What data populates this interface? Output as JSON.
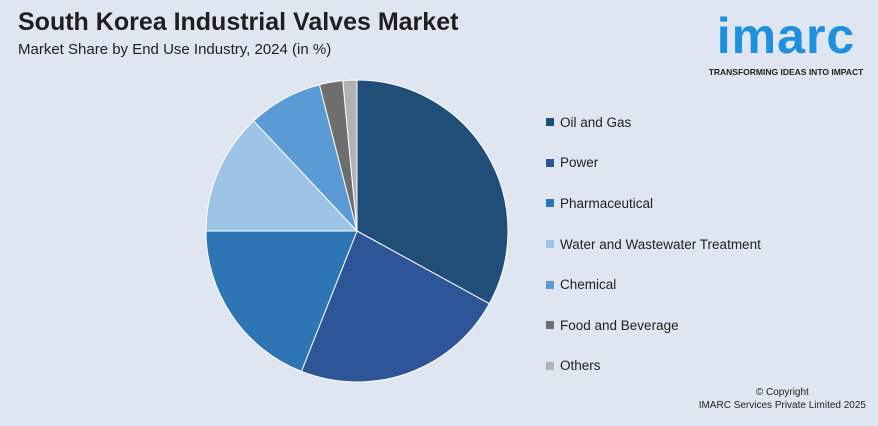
{
  "header": {
    "title": "South Korea Industrial Valves Market",
    "subtitle": "Market Share by End Use Industry, 2024 (in %)"
  },
  "logo": {
    "word": "imarc",
    "tagline": "TRANSFORMING IDEAS INTO IMPACT",
    "color": "#1e90e0"
  },
  "footer": {
    "copyright_line1": "© Copyright",
    "copyright_line2": "IMARC Services Private Limited 2025"
  },
  "chart_data": {
    "type": "pie",
    "title": "South Korea Industrial Valves Market",
    "subtitle": "Market Share by End Use Industry, 2024 (in %)",
    "legend_position": "right",
    "slices": [
      {
        "label": "Oil and Gas",
        "value": 33,
        "color": "#1f4e79"
      },
      {
        "label": "Power",
        "value": 23,
        "color": "#2e5597"
      },
      {
        "label": "Pharmaceutical",
        "value": 19,
        "color": "#2e75b6"
      },
      {
        "label": "Water and Wastewater Treatment",
        "value": 13,
        "color": "#9dc3e6"
      },
      {
        "label": "Chemical",
        "value": 8,
        "color": "#5b9bd5"
      },
      {
        "label": "Food and Beverage",
        "value": 2.5,
        "color": "#6e6e6e"
      },
      {
        "label": "Others",
        "value": 1.5,
        "color": "#b2b2b2"
      }
    ]
  }
}
